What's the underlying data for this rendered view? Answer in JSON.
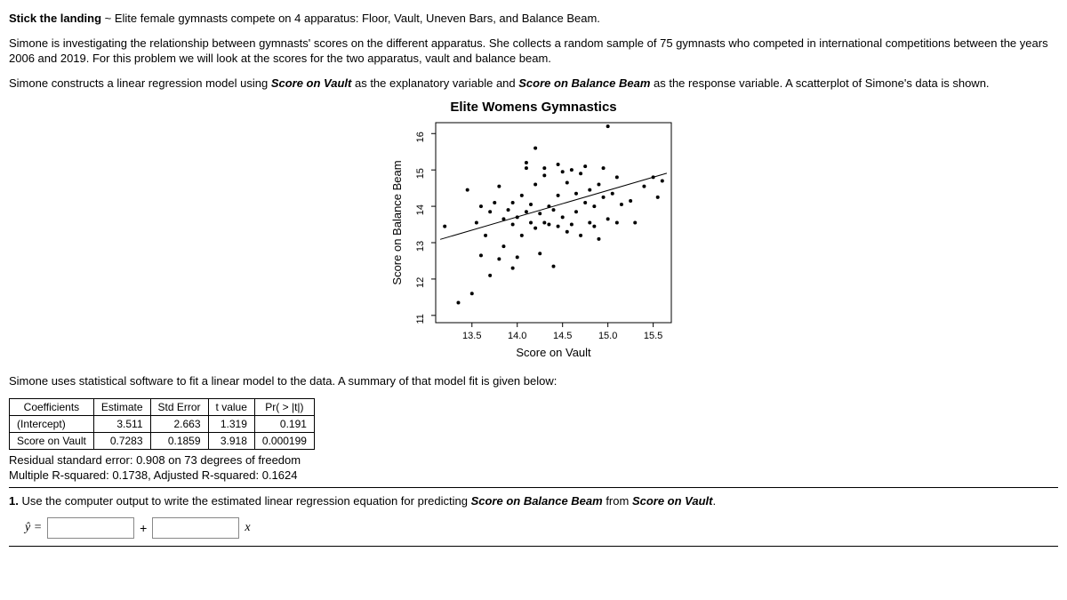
{
  "intro": {
    "lead_bold": "Stick the landing",
    "lead_rest": " ~ Elite female gymnasts compete on 4 apparatus: Floor, Vault, Uneven Bars, and Balance Beam.",
    "p2": "Simone is investigating the relationship between gymnasts' scores on the different apparatus. She collects a random sample of 75 gymnasts who competed in international competitions between the years 2006 and 2019. For this problem we will look at the scores for the two apparatus, vault and balance beam.",
    "p3a": "Simone constructs a linear regression model using ",
    "p3_x": "Score on Vault",
    "p3b": " as the explanatory variable and ",
    "p3_y": "Score on Balance Beam",
    "p3c": " as the response variable. A scatterplot of Simone's data is shown."
  },
  "chart": {
    "title": "Elite Womens Gymnastics",
    "xlabel": "Score on Vault",
    "ylabel": "Score on Balance Beam",
    "xlim": [
      13.1,
      15.7
    ],
    "ylim": [
      10.8,
      16.3
    ],
    "xticks": [
      13.5,
      14.0,
      14.5,
      15.0,
      15.5
    ],
    "yticks": [
      11,
      12,
      13,
      14,
      15,
      16
    ],
    "tick_fontsize": 11,
    "label_fontsize": 13,
    "title_fontsize": 15,
    "point_color": "#000000",
    "point_radius": 2.0,
    "line_color": "#000000",
    "line_width": 1,
    "box_color": "#000000",
    "background": "#ffffff",
    "reg_line": {
      "x1": 13.15,
      "y1": 13.09,
      "x2": 15.65,
      "y2": 14.91
    },
    "points": [
      [
        13.2,
        13.45
      ],
      [
        13.35,
        11.35
      ],
      [
        13.45,
        14.45
      ],
      [
        13.5,
        11.6
      ],
      [
        13.55,
        13.55
      ],
      [
        13.6,
        12.65
      ],
      [
        13.6,
        14.0
      ],
      [
        13.65,
        13.2
      ],
      [
        13.7,
        13.85
      ],
      [
        13.7,
        12.1
      ],
      [
        13.75,
        14.1
      ],
      [
        13.8,
        14.55
      ],
      [
        13.8,
        12.55
      ],
      [
        13.85,
        13.65
      ],
      [
        13.85,
        12.9
      ],
      [
        13.9,
        13.9
      ],
      [
        13.95,
        13.5
      ],
      [
        13.95,
        14.1
      ],
      [
        13.95,
        12.3
      ],
      [
        14.0,
        12.6
      ],
      [
        14.0,
        13.7
      ],
      [
        14.05,
        14.3
      ],
      [
        14.05,
        13.2
      ],
      [
        14.1,
        15.05
      ],
      [
        14.1,
        13.85
      ],
      [
        14.1,
        15.2
      ],
      [
        14.15,
        13.55
      ],
      [
        14.15,
        14.05
      ],
      [
        14.2,
        15.6
      ],
      [
        14.2,
        13.4
      ],
      [
        14.2,
        14.6
      ],
      [
        14.25,
        12.7
      ],
      [
        14.25,
        13.8
      ],
      [
        14.3,
        14.85
      ],
      [
        14.3,
        13.55
      ],
      [
        14.3,
        15.05
      ],
      [
        14.35,
        14.0
      ],
      [
        14.35,
        13.5
      ],
      [
        14.4,
        12.35
      ],
      [
        14.4,
        13.9
      ],
      [
        14.45,
        15.15
      ],
      [
        14.45,
        13.45
      ],
      [
        14.45,
        14.3
      ],
      [
        14.5,
        13.7
      ],
      [
        14.5,
        14.95
      ],
      [
        14.55,
        13.3
      ],
      [
        14.55,
        14.65
      ],
      [
        14.6,
        15.0
      ],
      [
        14.6,
        13.5
      ],
      [
        14.65,
        13.85
      ],
      [
        14.65,
        14.35
      ],
      [
        14.7,
        14.9
      ],
      [
        14.7,
        13.2
      ],
      [
        14.75,
        14.1
      ],
      [
        14.75,
        15.1
      ],
      [
        14.8,
        13.55
      ],
      [
        14.8,
        14.45
      ],
      [
        14.85,
        14.0
      ],
      [
        14.85,
        13.45
      ],
      [
        14.9,
        14.6
      ],
      [
        14.9,
        13.1
      ],
      [
        14.95,
        14.25
      ],
      [
        14.95,
        15.05
      ],
      [
        15.0,
        13.65
      ],
      [
        15.0,
        16.2
      ],
      [
        15.05,
        14.35
      ],
      [
        15.1,
        13.55
      ],
      [
        15.1,
        14.8
      ],
      [
        15.15,
        14.05
      ],
      [
        15.25,
        14.15
      ],
      [
        15.3,
        13.55
      ],
      [
        15.4,
        14.55
      ],
      [
        15.5,
        14.8
      ],
      [
        15.55,
        14.25
      ],
      [
        15.6,
        14.7
      ]
    ]
  },
  "summary_intro": "Simone uses statistical software to fit a linear model to the data. A summary of that model fit is given below:",
  "table": {
    "headers": [
      "Coefficients",
      "Estimate",
      "Std Error",
      "t value",
      "Pr( > |t|)"
    ],
    "rows": [
      [
        "(Intercept)",
        "3.511",
        "2.663",
        "1.319",
        "0.191"
      ],
      [
        "Score on Vault",
        "0.7283",
        "0.1859",
        "3.918",
        "0.000199"
      ]
    ]
  },
  "stats": {
    "line1": "Residual standard error: 0.908 on 73 degrees of freedom",
    "line2": "Multiple R-squared: 0.1738, Adjusted R-squared: 0.1624"
  },
  "question": {
    "num": "1.",
    "text_a": " Use the computer output to write the estimated linear regression equation for predicting ",
    "text_y": "Score on Balance Beam",
    "text_b": " from ",
    "text_x": "Score on Vault",
    "text_c": ".",
    "yhat": "ŷ =",
    "plus": "+",
    "x": "x"
  }
}
